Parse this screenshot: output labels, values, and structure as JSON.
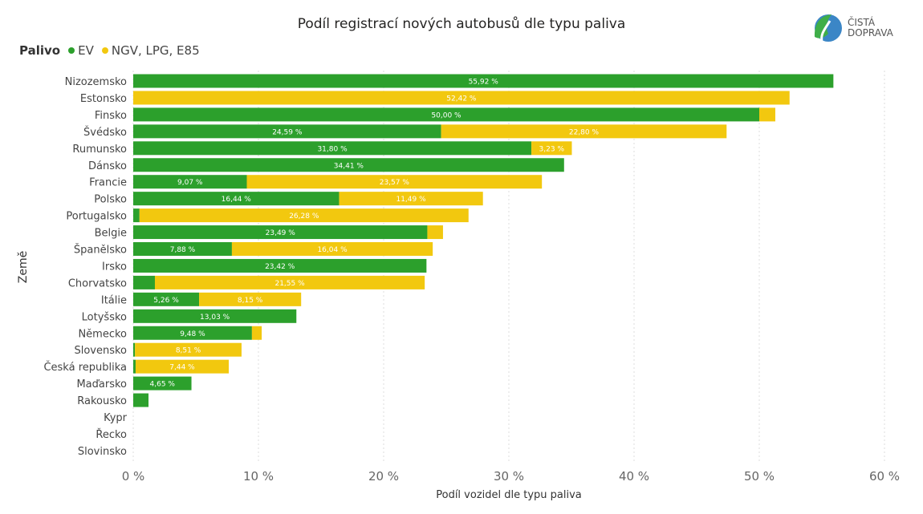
{
  "chart_data": {
    "type": "bar",
    "orientation": "horizontal",
    "stacked": true,
    "title": "Podíl registrací nových autobusů dle typu paliva",
    "legend_title": "Palivo",
    "legend_position": "top-left",
    "xlabel": "Podíl vozidel dle typu paliva",
    "ylabel": "Země",
    "xlim": [
      0,
      60
    ],
    "xticks": [
      "0 %",
      "10 %",
      "20 %",
      "30 %",
      "40 %",
      "50 %",
      "60 %"
    ],
    "grid": "vertical dashed",
    "categories": [
      "Nizozemsko",
      "Estonsko",
      "Finsko",
      "Švédsko",
      "Rumunsko",
      "Dánsko",
      "Francie",
      "Polsko",
      "Portugalsko",
      "Belgie",
      "Španělsko",
      "Irsko",
      "Chorvatsko",
      "Itálie",
      "Lotyšsko",
      "Německo",
      "Slovensko",
      "Česká republika",
      "Maďarsko",
      "Rakousko",
      "Kypr",
      "Řecko",
      "Slovinsko"
    ],
    "series": [
      {
        "name": "EV",
        "color": "#2ca02c",
        "values": [
          55.92,
          0,
          50.0,
          24.59,
          31.8,
          34.41,
          9.07,
          16.44,
          0.5,
          23.49,
          7.88,
          23.42,
          1.73,
          5.26,
          13.03,
          9.48,
          0.14,
          0.19,
          4.65,
          1.22,
          0,
          0,
          0
        ]
      },
      {
        "name": "NGV, LPG, E85",
        "color": "#f2c80f",
        "values": [
          0,
          52.42,
          1.28,
          22.8,
          3.23,
          0,
          23.57,
          11.49,
          26.28,
          1.25,
          16.04,
          0,
          21.55,
          8.15,
          0,
          0.78,
          8.51,
          7.44,
          0,
          0,
          0,
          0,
          0
        ]
      }
    ]
  },
  "logo": {
    "line1": "ČISTÁ",
    "line2": "DOPRAVA"
  }
}
